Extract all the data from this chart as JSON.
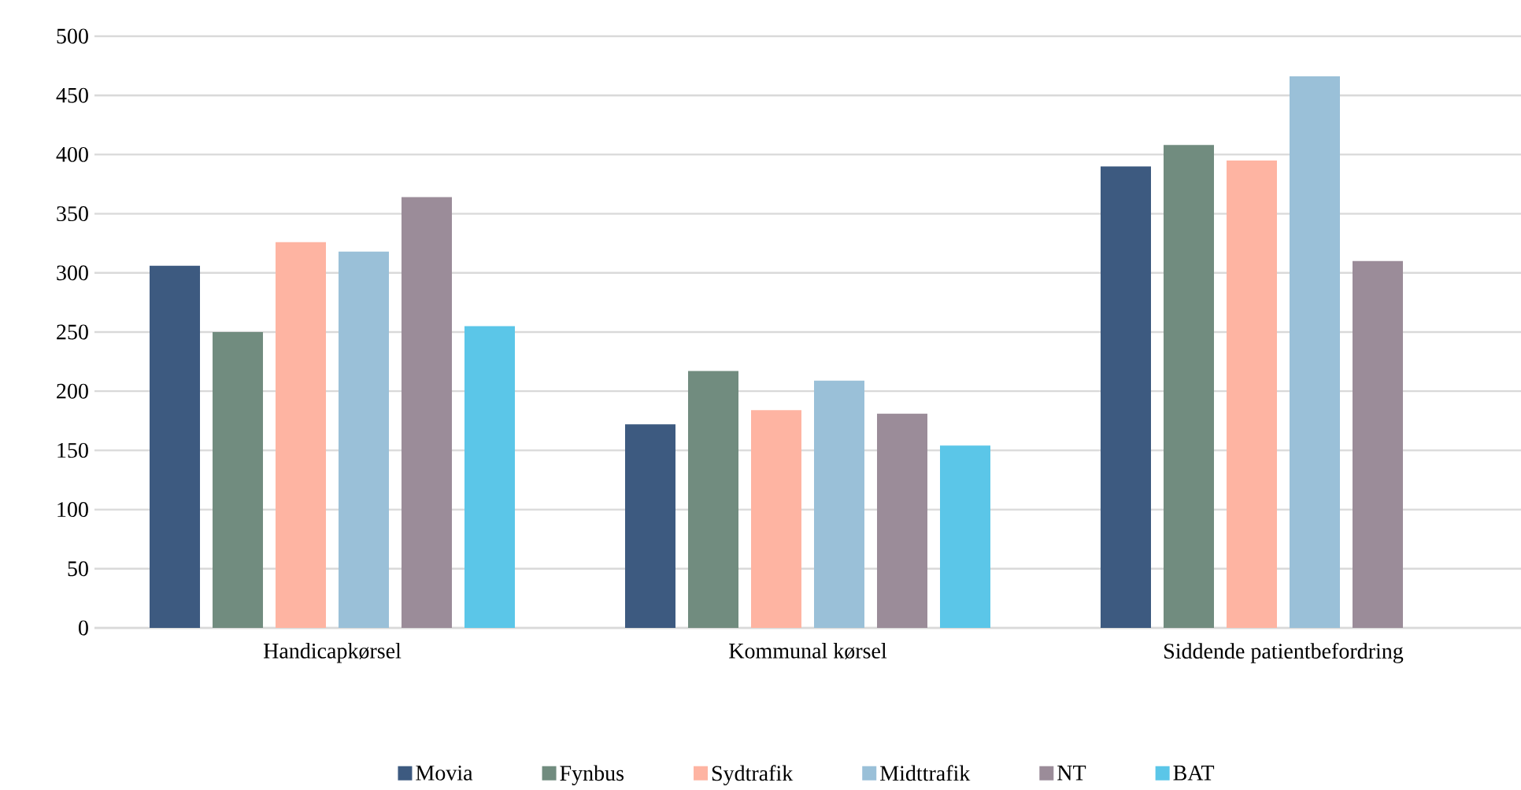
{
  "chart_data": {
    "type": "bar",
    "categories": [
      "Handicapkørsel",
      "Kommunal kørsel",
      "Siddende patientbefordring"
    ],
    "series": [
      {
        "name": "Movia",
        "color": "#3d5a80",
        "values": [
          306,
          172,
          390
        ]
      },
      {
        "name": "Fynbus",
        "color": "#718c7f",
        "values": [
          250,
          217,
          408
        ]
      },
      {
        "name": "Sydtrafik",
        "color": "#feb4a2",
        "values": [
          326,
          184,
          395
        ]
      },
      {
        "name": "Midttrafik",
        "color": "#9ac0d8",
        "values": [
          318,
          209,
          466
        ]
      },
      {
        "name": "NT",
        "color": "#9b8c99",
        "values": [
          364,
          181,
          310
        ]
      },
      {
        "name": "BAT",
        "color": "#5bc6e8",
        "values": [
          255,
          154,
          null
        ]
      }
    ],
    "ylim": [
      0,
      500
    ],
    "yticks": [
      0,
      50,
      100,
      150,
      200,
      250,
      300,
      350,
      400,
      450,
      500
    ],
    "grid": "y",
    "legend": "bottom"
  }
}
